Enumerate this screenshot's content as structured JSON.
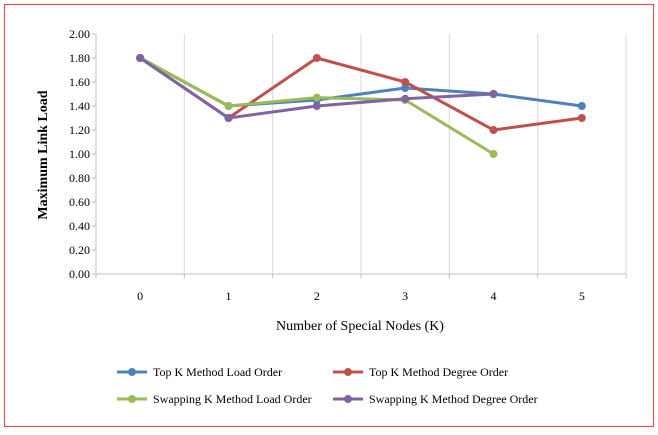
{
  "chart_data": {
    "type": "line",
    "title": "",
    "xlabel": "Number of Special Nodes (K)",
    "ylabel": "Maximum Link Load",
    "x": [
      0,
      1,
      2,
      3,
      4,
      5
    ],
    "x_tick_labels": [
      "0",
      "1",
      "2",
      "3",
      "4",
      "5"
    ],
    "ylim": [
      0,
      2
    ],
    "y_tick_labels": [
      "0.00",
      "0.20",
      "0.40",
      "0.60",
      "0.80",
      "1.00",
      "1.20",
      "1.40",
      "1.60",
      "1.80",
      "2.00"
    ],
    "grid": "vertical",
    "legend_position": "bottom",
    "series": [
      {
        "name": "Top K Method Load Order",
        "color": "#4f81bd",
        "values": [
          1.8,
          1.4,
          1.45,
          1.55,
          1.5,
          1.4
        ]
      },
      {
        "name": "Top K Method Degree Order",
        "color": "#c0504d",
        "values": [
          1.8,
          1.3,
          1.8,
          1.6,
          1.2,
          1.3
        ]
      },
      {
        "name": "Swapping K Method Load Order",
        "color": "#9bbb59",
        "values": [
          1.8,
          1.4,
          1.47,
          1.45,
          1.0,
          null
        ]
      },
      {
        "name": "Swapping K Method Degree Order",
        "color": "#8064a2",
        "values": [
          1.8,
          1.3,
          1.4,
          1.46,
          1.5,
          null
        ]
      }
    ]
  }
}
